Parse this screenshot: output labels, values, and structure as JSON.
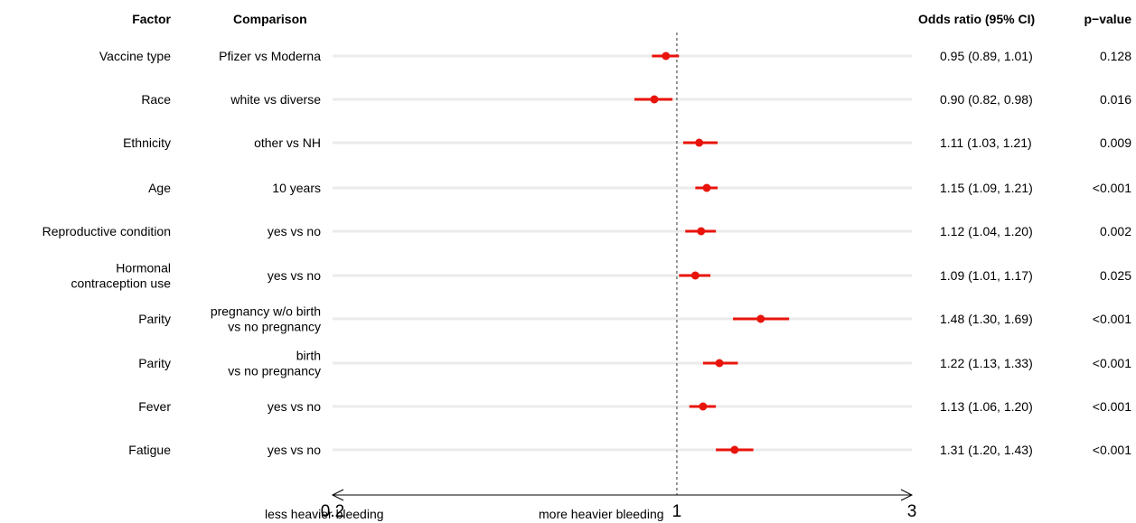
{
  "headers": {
    "factor": "Factor",
    "comparison": "Comparison",
    "or": "Odds ratio (95% CI)",
    "pvalue": "p−value"
  },
  "axis_labels": {
    "left": "less heavier bleeding",
    "right": "more heavier bleeding"
  },
  "colors": {
    "point": "#e8140c",
    "band": "#ebebeb",
    "axis": "#000000",
    "refline": "#333333"
  },
  "chart_data": {
    "type": "forest",
    "x_scale": "log",
    "xlim": [
      0.2,
      3
    ],
    "reference_line": 1,
    "x_ticks": [
      "0.2",
      "1",
      "3"
    ],
    "rows": [
      {
        "factor": [
          "Vaccine type"
        ],
        "comparison": [
          "Pfizer vs Moderna"
        ],
        "or": 0.95,
        "lo": 0.89,
        "hi": 1.01,
        "ci_text": "0.95 (0.89, 1.01)",
        "p": "0.128"
      },
      {
        "factor": [
          "Race"
        ],
        "comparison": [
          "white vs diverse"
        ],
        "or": 0.9,
        "lo": 0.82,
        "hi": 0.98,
        "ci_text": "0.90 (0.82, 0.98)",
        "p": "0.016"
      },
      {
        "factor": [
          "Ethnicity"
        ],
        "comparison": [
          "other vs NH"
        ],
        "or": 1.11,
        "lo": 1.03,
        "hi": 1.21,
        "ci_text": "1.11 (1.03, 1.21)",
        "p": "0.009"
      },
      {
        "factor": [
          "Age"
        ],
        "comparison": [
          "10 years"
        ],
        "or": 1.15,
        "lo": 1.09,
        "hi": 1.21,
        "ci_text": "1.15 (1.09, 1.21)",
        "p": "<0.001"
      },
      {
        "factor": [
          "Reproductive condition"
        ],
        "comparison": [
          "yes vs no"
        ],
        "or": 1.12,
        "lo": 1.04,
        "hi": 1.2,
        "ci_text": "1.12 (1.04, 1.20)",
        "p": "0.002"
      },
      {
        "factor": [
          "Hormonal",
          "contraception use"
        ],
        "comparison": [
          "yes vs no"
        ],
        "or": 1.09,
        "lo": 1.01,
        "hi": 1.17,
        "ci_text": "1.09 (1.01, 1.17)",
        "p": "0.025"
      },
      {
        "factor": [
          "Parity"
        ],
        "comparison": [
          "pregnancy w/o birth",
          "vs no pregnancy"
        ],
        "or": 1.48,
        "lo": 1.3,
        "hi": 1.69,
        "ci_text": "1.48 (1.30, 1.69)",
        "p": "<0.001"
      },
      {
        "factor": [
          "Parity"
        ],
        "comparison": [
          "birth",
          "vs no pregnancy"
        ],
        "or": 1.22,
        "lo": 1.13,
        "hi": 1.33,
        "ci_text": "1.22 (1.13, 1.33)",
        "p": "<0.001"
      },
      {
        "factor": [
          "Fever"
        ],
        "comparison": [
          "yes vs no"
        ],
        "or": 1.13,
        "lo": 1.06,
        "hi": 1.2,
        "ci_text": "1.13 (1.06, 1.20)",
        "p": "<0.001"
      },
      {
        "factor": [
          "Fatigue"
        ],
        "comparison": [
          "yes vs no"
        ],
        "or": 1.31,
        "lo": 1.2,
        "hi": 1.43,
        "ci_text": "1.31 (1.20, 1.43)",
        "p": "<0.001"
      }
    ]
  }
}
